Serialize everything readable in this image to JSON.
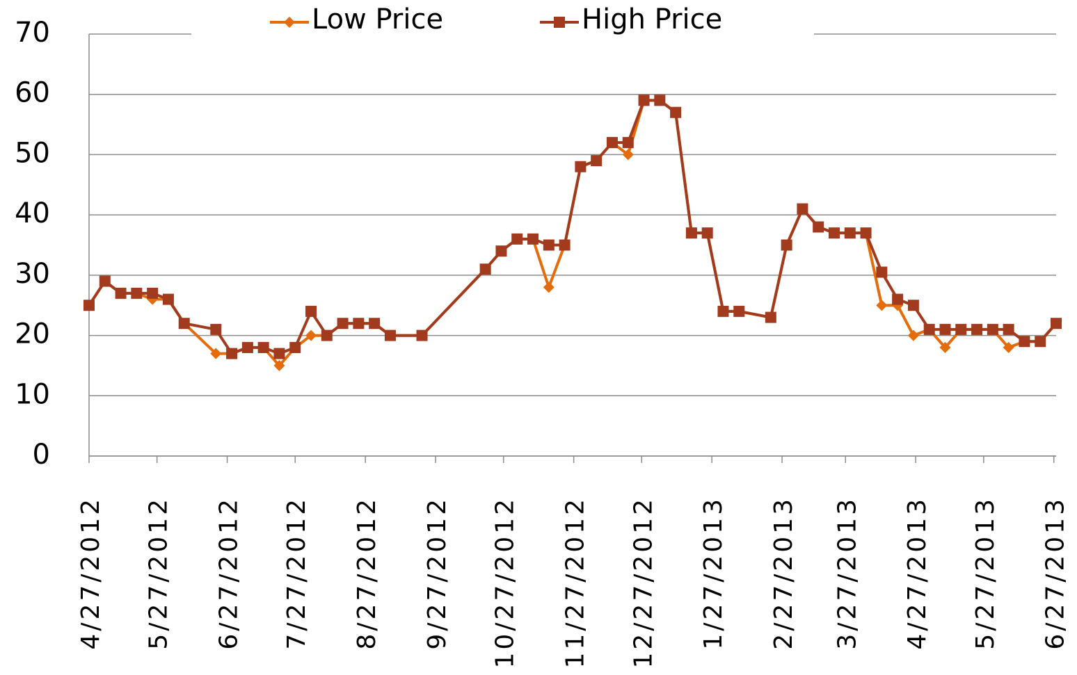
{
  "chart_data": {
    "type": "line",
    "x": [
      "4/27/2012",
      "5/4/2012",
      "5/11/2012",
      "5/18/2012",
      "5/25/2012",
      "6/1/2012",
      "6/8/2012",
      "6/22/2012",
      "6/29/2012",
      "7/6/2012",
      "7/13/2012",
      "7/20/2012",
      "7/27/2012",
      "8/3/2012",
      "8/10/2012",
      "8/17/2012",
      "8/24/2012",
      "8/31/2012",
      "9/7/2012",
      "9/21/2012",
      "10/19/2012",
      "10/26/2012",
      "11/2/2012",
      "11/9/2012",
      "11/16/2012",
      "11/23/2012",
      "11/30/2012",
      "12/7/2012",
      "12/14/2012",
      "12/21/2012",
      "12/28/2012",
      "1/4/2013",
      "1/11/2013",
      "1/18/2013",
      "1/25/2013",
      "2/1/2013",
      "2/8/2013",
      "2/22/2013",
      "3/1/2013",
      "3/8/2013",
      "3/15/2013",
      "3/22/2013",
      "3/29/2013",
      "4/5/2013",
      "4/12/2013",
      "4/19/2013",
      "4/26/2013",
      "5/3/2013",
      "5/10/2013",
      "5/17/2013",
      "5/24/2013",
      "5/31/2013",
      "6/7/2013",
      "6/14/2013",
      "6/21/2013",
      "6/28/2013"
    ],
    "series": [
      {
        "name": "Low Price",
        "color": "#e46c0a",
        "marker": "diamond",
        "values": [
          25,
          29,
          27,
          27,
          26,
          26,
          22,
          17,
          17,
          18,
          18,
          15,
          18,
          20,
          20,
          22,
          22,
          22,
          20,
          20,
          31,
          34,
          36,
          36,
          28,
          35,
          48,
          49,
          52,
          50,
          59,
          59,
          57,
          37,
          37,
          24,
          24,
          23,
          35,
          41,
          38,
          37,
          37,
          37,
          25,
          25,
          20,
          21,
          18,
          21,
          21,
          21,
          18,
          19,
          19,
          22
        ]
      },
      {
        "name": "High Price",
        "color": "#a23b1d",
        "marker": "square",
        "values": [
          25,
          29,
          27,
          27,
          27,
          26,
          22,
          21,
          17,
          18,
          18,
          17,
          18,
          24,
          20,
          22,
          22,
          22,
          20,
          20,
          31,
          34,
          36,
          36,
          35,
          35,
          48,
          49,
          52,
          52,
          59,
          59,
          57,
          37,
          37,
          24,
          24,
          23,
          35,
          41,
          38,
          37,
          37,
          37,
          30.5,
          26,
          25,
          21,
          21,
          21,
          21,
          21,
          21,
          19,
          19,
          22
        ]
      }
    ],
    "xlim": [
      "4/27/2012",
      "6/28/2013"
    ],
    "xticks": [
      "4/27/2012",
      "5/27/2012",
      "6/27/2012",
      "7/27/2012",
      "8/27/2012",
      "9/27/2012",
      "10/27/2012",
      "11/27/2012",
      "12/27/2012",
      "1/27/2013",
      "2/27/2013",
      "3/27/2013",
      "4/27/2013",
      "5/27/2013",
      "6/27/2013"
    ],
    "ylim": [
      0,
      70
    ],
    "yticks": [
      0,
      10,
      20,
      30,
      40,
      50,
      60,
      70
    ],
    "grid": true,
    "legend": "top"
  }
}
